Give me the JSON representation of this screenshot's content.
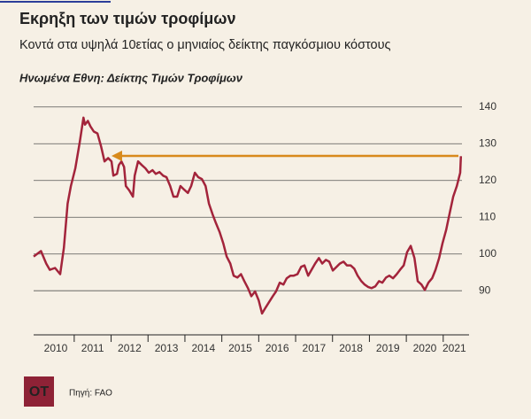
{
  "chart_data": {
    "type": "line",
    "title": "Εκρηξη των τιμών τροφίμων",
    "subtitle": "Κοντά στα υψηλά 10ετίας ο μηνιαίος δείκτης παγκόσμιου κόστους",
    "chart_label": "Ηνωμένα Εθνη: Δείκτης Τιμών Τροφίμων",
    "source": "Πηγή: FAO",
    "logo": "OT",
    "color": "#a3243b",
    "grid": true,
    "xlim": [
      2009.9,
      2021.7
    ],
    "ylim": [
      78,
      145
    ],
    "yticks": [
      90,
      100,
      110,
      120,
      130,
      140
    ],
    "xticks": [
      {
        "value": 2010.5,
        "label": "2010"
      },
      {
        "value": 2011.5,
        "label": "2011"
      },
      {
        "value": 2012.5,
        "label": "2012"
      },
      {
        "value": 2013.5,
        "label": "2013"
      },
      {
        "value": 2014.5,
        "label": "2014"
      },
      {
        "value": 2015.5,
        "label": "2015"
      },
      {
        "value": 2016.5,
        "label": "2016"
      },
      {
        "value": 2017.5,
        "label": "2017"
      },
      {
        "value": 2018.5,
        "label": "2018"
      },
      {
        "value": 2019.5,
        "label": "2019"
      },
      {
        "value": 2020.5,
        "label": "2020"
      },
      {
        "value": 2021.3,
        "label": "2021"
      }
    ],
    "x": [
      2009.9,
      2010.1,
      2010.24,
      2010.34,
      2010.48,
      2010.62,
      2010.72,
      2010.82,
      2010.91,
      2011.03,
      2011.15,
      2011.25,
      2011.29,
      2011.37,
      2011.44,
      2011.53,
      2011.63,
      2011.73,
      2011.82,
      2011.92,
      2012.01,
      2012.06,
      2012.16,
      2012.21,
      2012.28,
      2012.35,
      2012.4,
      2012.49,
      2012.59,
      2012.64,
      2012.73,
      2012.83,
      2012.93,
      2013.02,
      2013.12,
      2013.21,
      2013.31,
      2013.41,
      2013.5,
      2013.6,
      2013.69,
      2013.79,
      2013.88,
      2013.98,
      2014.08,
      2014.17,
      2014.27,
      2014.36,
      2014.46,
      2014.56,
      2014.65,
      2014.75,
      2014.84,
      2014.94,
      2015.04,
      2015.13,
      2015.23,
      2015.32,
      2015.42,
      2015.52,
      2015.61,
      2015.71,
      2015.8,
      2015.9,
      2016.0,
      2016.09,
      2016.19,
      2016.28,
      2016.38,
      2016.47,
      2016.57,
      2016.67,
      2016.76,
      2016.86,
      2016.95,
      2017.05,
      2017.15,
      2017.24,
      2017.34,
      2017.43,
      2017.53,
      2017.63,
      2017.72,
      2017.82,
      2017.91,
      2018.01,
      2018.11,
      2018.2,
      2018.3,
      2018.39,
      2018.49,
      2018.59,
      2018.68,
      2018.78,
      2018.87,
      2018.97,
      2019.06,
      2019.16,
      2019.26,
      2019.35,
      2019.45,
      2019.54,
      2019.64,
      2019.74,
      2019.83,
      2019.93,
      2020.02,
      2020.12,
      2020.22,
      2020.31,
      2020.41,
      2020.5,
      2020.6,
      2020.7,
      2020.79,
      2020.89,
      2020.98,
      2021.08,
      2021.18,
      2021.27,
      2021.37,
      2021.46,
      2021.48
    ],
    "values": [
      99.3,
      100.8,
      97.4,
      95.7,
      96.2,
      94.5,
      101.7,
      113.7,
      118.5,
      123.3,
      130.4,
      137.1,
      135.2,
      136.2,
      134.7,
      133.3,
      132.8,
      129.2,
      125.2,
      126.1,
      125.2,
      121.3,
      121.8,
      124.2,
      125.2,
      123.7,
      118.5,
      117.3,
      115.6,
      121.3,
      125.2,
      124.2,
      123.3,
      122.1,
      122.8,
      121.8,
      122.3,
      121.3,
      120.9,
      118.5,
      115.6,
      115.6,
      118.5,
      117.5,
      116.6,
      118.5,
      122.1,
      120.9,
      120.4,
      118.5,
      113.7,
      110.8,
      108.4,
      106.0,
      102.9,
      99.3,
      97.4,
      94.1,
      93.6,
      94.5,
      92.6,
      90.7,
      88.5,
      89.8,
      87.4,
      83.8,
      85.5,
      86.9,
      88.5,
      89.8,
      92.2,
      91.7,
      93.4,
      94.1,
      94.1,
      94.5,
      96.5,
      96.9,
      94.1,
      95.7,
      97.4,
      98.9,
      97.4,
      98.4,
      97.9,
      95.5,
      96.5,
      97.4,
      97.9,
      96.9,
      96.9,
      96.0,
      94.1,
      92.6,
      91.7,
      91.0,
      90.7,
      91.2,
      92.6,
      92.2,
      93.6,
      94.1,
      93.4,
      94.5,
      95.7,
      96.9,
      100.5,
      102.2,
      98.9,
      92.6,
      91.7,
      90.2,
      92.2,
      93.4,
      95.7,
      98.9,
      102.9,
      106.5,
      111.3,
      115.6,
      118.5,
      122.1,
      126.6
    ]
  }
}
